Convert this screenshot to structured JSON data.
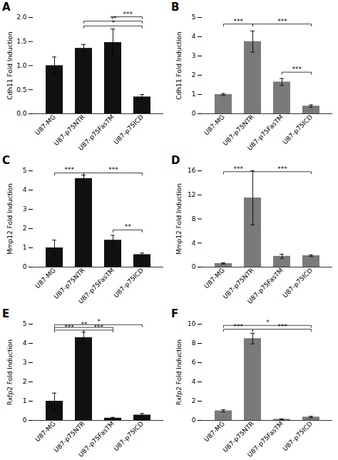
{
  "chart_data": [
    {
      "type": "bar",
      "title": "A",
      "ylabel": "Cdh11 Fold Induction",
      "color": "#111111",
      "categories": [
        "U87-MG",
        "U87-p75NTR",
        "U87-p75FasTM",
        "U87-p75ICD"
      ],
      "values": [
        1.0,
        1.36,
        1.48,
        0.35
      ],
      "errors": [
        0.18,
        0.08,
        0.28,
        0.05
      ],
      "ylim": [
        0,
        2.0
      ],
      "yticks": [
        {
          "value": 0,
          "label": "0.0"
        },
        0.5,
        {
          "value": 1.0,
          "label": "1.0"
        },
        1.5,
        {
          "value": 2.0,
          "label": "2.0"
        }
      ],
      "grid": false,
      "significance": [
        {
          "from": "U87-p75NTR",
          "to": "U87-p75ICD",
          "y": 1.78,
          "label": "*"
        },
        {
          "from": "U87-p75NTR",
          "to": "U87-p75ICD",
          "y": 1.88,
          "label": "**"
        },
        {
          "from": "U87-p75FasTM",
          "to": "U87-p75ICD",
          "y": 1.97,
          "label": "***"
        }
      ]
    },
    {
      "type": "bar",
      "title": "B",
      "ylabel": "Cdh11 Fold Induction",
      "color": "#7a7a7a",
      "categories": [
        "U87-MG",
        "U87-p75NTR",
        "U87-p75FasTM",
        "U87-p75ICD"
      ],
      "values": [
        1.0,
        3.75,
        1.65,
        0.4
      ],
      "errors": [
        0.05,
        0.55,
        0.18,
        0.06
      ],
      "ylim": [
        0,
        5.0
      ],
      "yticks": [
        0,
        1,
        2,
        3,
        4,
        5
      ],
      "grid": false,
      "significance": [
        {
          "from": "U87-MG",
          "to": "U87-p75NTR",
          "y": 4.55,
          "label": "***"
        },
        {
          "from": "U87-p75NTR",
          "to": "U87-p75ICD",
          "y": 4.55,
          "label": "***"
        },
        {
          "from": "U87-p75FasTM",
          "to": "U87-p75ICD",
          "y": 2.05,
          "label": "***"
        }
      ]
    },
    {
      "type": "bar",
      "title": "C",
      "ylabel": "Mmp12 Fold Induction",
      "color": "#111111",
      "categories": [
        "U87-MG",
        "U87-p75NTR",
        "U87-p75FasTM",
        "U87-p75ICD"
      ],
      "values": [
        1.0,
        4.6,
        1.4,
        0.65
      ],
      "errors": [
        0.4,
        0.18,
        0.25,
        0.08
      ],
      "ylim": [
        0,
        5.0
      ],
      "yticks": [
        0,
        1,
        2,
        3,
        4,
        5
      ],
      "grid": false,
      "significance": [
        {
          "from": "U87-MG",
          "to": "U87-p75NTR",
          "y": 4.78,
          "label": "***"
        },
        {
          "from": "U87-p75NTR",
          "to": "U87-p75ICD",
          "y": 4.78,
          "label": "***"
        },
        {
          "from": "U87-p75FasTM",
          "to": "U87-p75ICD",
          "y": 1.82,
          "label": "**"
        }
      ]
    },
    {
      "type": "bar",
      "title": "D",
      "ylabel": "Mmp12 Fold Induction",
      "color": "#7a7a7a",
      "categories": [
        "U87-MG",
        "U87-p75NTR",
        "U87-p75FasTM",
        "U87-p75ICD"
      ],
      "values": [
        0.6,
        11.5,
        1.8,
        1.9
      ],
      "errors": [
        0.1,
        4.5,
        0.35,
        0.15
      ],
      "ylim": [
        0,
        16
      ],
      "yticks": [
        0,
        4,
        8,
        12,
        16
      ],
      "grid": false,
      "significance": [
        {
          "from": "U87-MG",
          "to": "U87-p75NTR",
          "y": 15.5,
          "label": "***"
        },
        {
          "from": "U87-p75NTR",
          "to": "U87-p75ICD",
          "y": 15.5,
          "label": "***"
        }
      ]
    },
    {
      "type": "bar",
      "title": "E",
      "ylabel": "Rxfp2 Fold Induction",
      "color": "#111111",
      "categories": [
        "U87-MG",
        "U87-p75NTR",
        "U87-p75FasTM",
        "U87-p75ICD"
      ],
      "values": [
        1.0,
        4.3,
        0.12,
        0.28
      ],
      "errors": [
        0.42,
        0.28,
        0.04,
        0.08
      ],
      "ylim": [
        0,
        5.0
      ],
      "yticks": [
        0,
        1,
        2,
        3,
        4,
        5
      ],
      "grid": false,
      "significance": [
        {
          "from": "U87-MG",
          "to": "U87-p75NTR",
          "y": 4.58,
          "label": "***"
        },
        {
          "from": "U87-p75NTR",
          "to": "U87-p75FasTM",
          "y": 4.58,
          "label": "***"
        },
        {
          "from": "U87-MG",
          "to": "U87-p75FasTM",
          "y": 4.72,
          "label": "**"
        },
        {
          "from": "U87-MG",
          "to": "U87-p75ICD",
          "y": 4.86,
          "label": "*"
        }
      ]
    },
    {
      "type": "bar",
      "title": "F",
      "ylabel": "Rxfp2 Fold Induction",
      "color": "#7a7a7a",
      "categories": [
        "U87-MG",
        "U87-p75NTR",
        "U87-p75FasTM",
        "U87-p75ICD"
      ],
      "values": [
        1.0,
        8.5,
        0.12,
        0.35
      ],
      "errors": [
        0.12,
        0.55,
        0.04,
        0.08
      ],
      "ylim": [
        0,
        10
      ],
      "yticks": [
        0,
        2,
        4,
        6,
        8,
        10
      ],
      "grid": false,
      "significance": [
        {
          "from": "U87-MG",
          "to": "U87-p75NTR",
          "y": 9.25,
          "label": "***"
        },
        {
          "from": "U87-p75NTR",
          "to": "U87-p75ICD",
          "y": 9.25,
          "label": "***"
        },
        {
          "from": "U87-MG",
          "to": "U87-p75ICD",
          "y": 9.65,
          "label": "*"
        }
      ]
    }
  ]
}
